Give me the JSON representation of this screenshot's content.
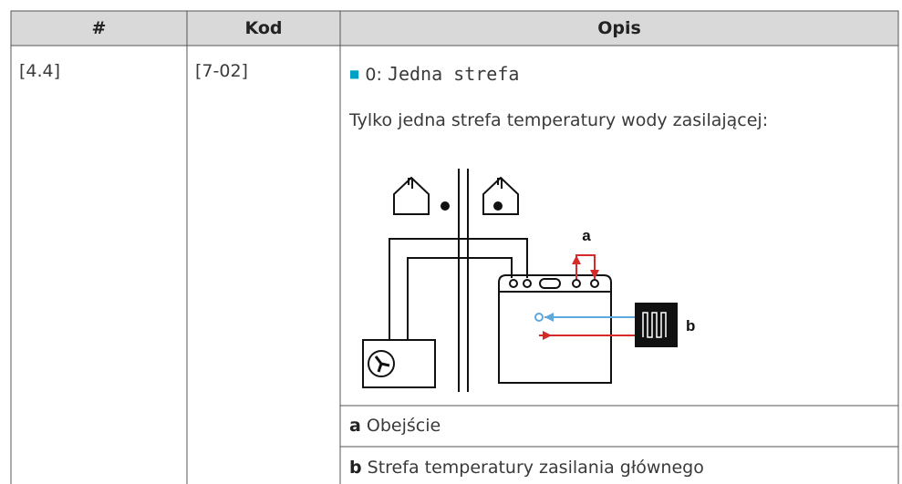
{
  "header": {
    "columns": [
      "#",
      "Kod",
      "Opis"
    ]
  },
  "row": {
    "id": "[4.4]",
    "code": "[7-02]",
    "option": {
      "value": "0:",
      "label": "Jedna strefa"
    },
    "description": "Tylko jedna strefa temperatury wody zasilającej:",
    "diagram": {
      "labels": [
        "a",
        "b"
      ]
    },
    "legend": [
      {
        "key": "a",
        "text": "Obejście"
      },
      {
        "key": "b",
        "text": "Strefa temperatury zasilania głównego"
      }
    ]
  }
}
